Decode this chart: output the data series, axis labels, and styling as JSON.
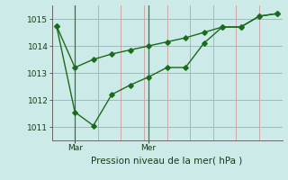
{
  "line1_x": [
    0,
    8,
    16,
    24,
    32,
    40,
    48,
    56,
    64,
    72,
    80,
    88,
    96
  ],
  "line1_y": [
    1014.75,
    1013.2,
    1013.5,
    1013.7,
    1013.85,
    1014.0,
    1014.15,
    1014.3,
    1014.5,
    1014.7,
    1014.7,
    1015.1,
    1015.2
  ],
  "line2_x": [
    0,
    8,
    16,
    24,
    32,
    40,
    48,
    56,
    64,
    72,
    80,
    88,
    96
  ],
  "line2_y": [
    1014.75,
    1011.55,
    1011.05,
    1012.2,
    1012.55,
    1012.85,
    1013.2,
    1013.2,
    1014.1,
    1014.7,
    1014.7,
    1015.1,
    1015.2
  ],
  "color": "#1a6b1a",
  "bg_color": "#cceae8",
  "grid_color_h": "#dda0a0",
  "grid_color_v": "#cca8a8",
  "xlabel": "Pression niveau de la mer( hPa )",
  "yticks": [
    1011,
    1012,
    1013,
    1014,
    1015
  ],
  "mar_x": 8,
  "mer_x": 40,
  "ymin": 1010.5,
  "ymax": 1015.5,
  "xmin": -2,
  "xmax": 98
}
